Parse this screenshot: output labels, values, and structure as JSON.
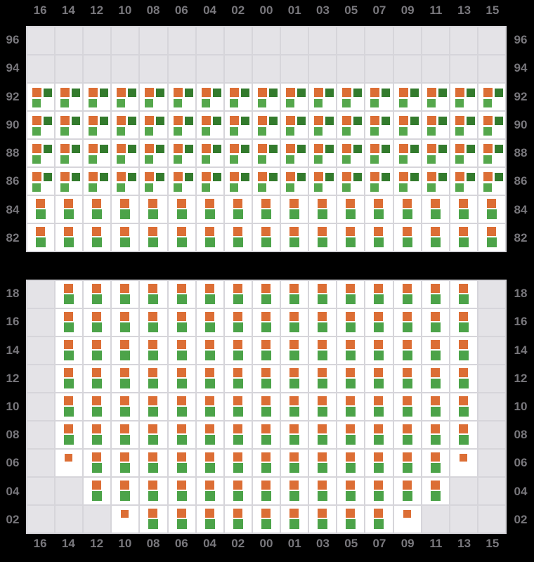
{
  "colors": {
    "background": "#000000",
    "grid_line": "#D6D5DA",
    "cell_fill": "#FFFFFF",
    "empty_cell_fill": "#E4E3E7",
    "label_text": "#78777C",
    "orange": "#DC6E35",
    "dark_green": "#337B2D",
    "light_green": "#55A74C",
    "green": "#4CA349"
  },
  "chart_data": {
    "type": "heatmap",
    "title": "",
    "grid": "on",
    "columns": [
      "16",
      "14",
      "12",
      "10",
      "08",
      "06",
      "04",
      "02",
      "00",
      "01",
      "03",
      "05",
      "07",
      "09",
      "11",
      "13",
      "15"
    ],
    "cell_codes_meaning": {
      "T": "three marks: orange top-left, dark-green top-right, light-green bottom-left",
      "D": "two marks stacked: orange above green, centered",
      "S": "single small orange mark at top center",
      "E": "empty gray cell (no data)"
    },
    "marker_layouts": {
      "T": [
        {
          "c": "orange",
          "x": 7,
          "y": 6,
          "s": 13
        },
        {
          "c": "dark_green",
          "x": 23,
          "y": 7,
          "s": 12
        },
        {
          "c": "light_green",
          "x": 7,
          "y": 22,
          "s": 12
        }
      ],
      "D": [
        {
          "c": "orange",
          "x": 12,
          "y": 4,
          "s": 13
        },
        {
          "c": "green",
          "x": 12,
          "y": 19,
          "s": 14
        }
      ],
      "S": [
        {
          "c": "orange",
          "x": 13,
          "y": 6,
          "s": 11
        }
      ],
      "E": []
    },
    "upper_section": {
      "row_labels": [
        "96",
        "94",
        "92",
        "90",
        "88",
        "86",
        "84",
        "82"
      ],
      "rows": [
        {
          "label": "96",
          "cells": "EEEEEEEEEEEEEEEEE"
        },
        {
          "label": "94",
          "cells": "EEEEEEEEEEEEEEEEE"
        },
        {
          "label": "92",
          "cells": "TTTTTTTTTTTTTTTTT"
        },
        {
          "label": "90",
          "cells": "TTTTTTTTTTTTTTTTT"
        },
        {
          "label": "88",
          "cells": "TTTTTTTTTTTTTTTTT"
        },
        {
          "label": "86",
          "cells": "TTTTTTTTTTTTTTTTT"
        },
        {
          "label": "84",
          "cells": "DDDDDDDDDDDDDDDDD"
        },
        {
          "label": "82",
          "cells": "DDDDDDDDDDDDDDDDD"
        }
      ]
    },
    "lower_section": {
      "row_labels": [
        "18",
        "16",
        "14",
        "12",
        "10",
        "08",
        "06",
        "04",
        "02"
      ],
      "rows": [
        {
          "label": "18",
          "cells": "EDDDDDDDDDDDDDDDE"
        },
        {
          "label": "16",
          "cells": "EDDDDDDDDDDDDDDDE"
        },
        {
          "label": "14",
          "cells": "EDDDDDDDDDDDDDDDE"
        },
        {
          "label": "12",
          "cells": "EDDDDDDDDDDDDDDDE"
        },
        {
          "label": "10",
          "cells": "EDDDDDDDDDDDDDDDE"
        },
        {
          "label": "08",
          "cells": "EDDDDDDDDDDDDDDDE"
        },
        {
          "label": "06",
          "cells": "ESDDDDDDDDDDDDDSE"
        },
        {
          "label": "04",
          "cells": "EEDDDDDDDDDDDDDEE"
        },
        {
          "label": "02",
          "cells": "EEESDDDDDDDDDSEEE"
        }
      ]
    }
  }
}
